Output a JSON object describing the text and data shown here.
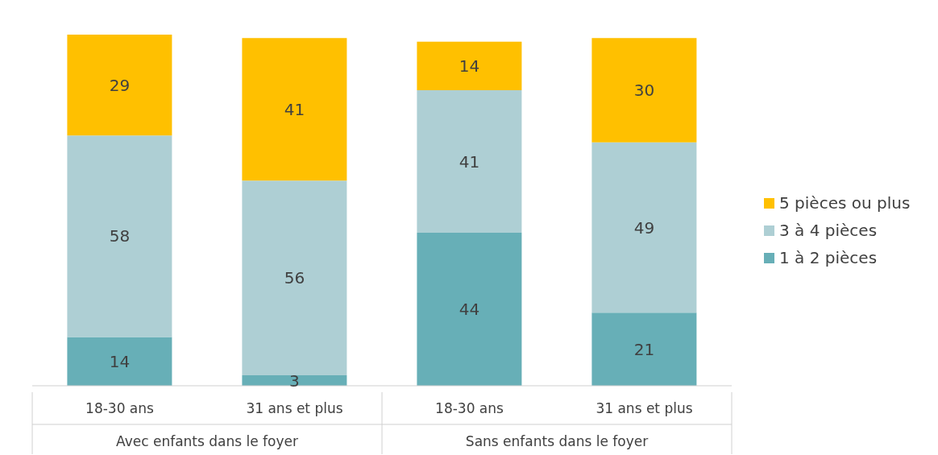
{
  "chart_data": {
    "type": "bar",
    "stacked": true,
    "data_labels": true,
    "legend": "right",
    "grid": false,
    "categories": [
      "18-30 ans",
      "31 ans et plus",
      "18-30 ans",
      "31 ans et plus"
    ],
    "series": [
      {
        "name": "1 à 2 pièces",
        "color": "#67afb7",
        "values": [
          14,
          3,
          44,
          21
        ]
      },
      {
        "name": "3 à 4 pièces",
        "color": "#aecfd4",
        "values": [
          58,
          56,
          41,
          49
        ]
      },
      {
        "name": "5 pièces ou plus",
        "color": "#ffc000",
        "values": [
          29,
          41,
          14,
          30
        ]
      }
    ],
    "annotations": [
      "Avec enfants dans le foyer",
      "Sans enfants dans le foyer"
    ]
  }
}
